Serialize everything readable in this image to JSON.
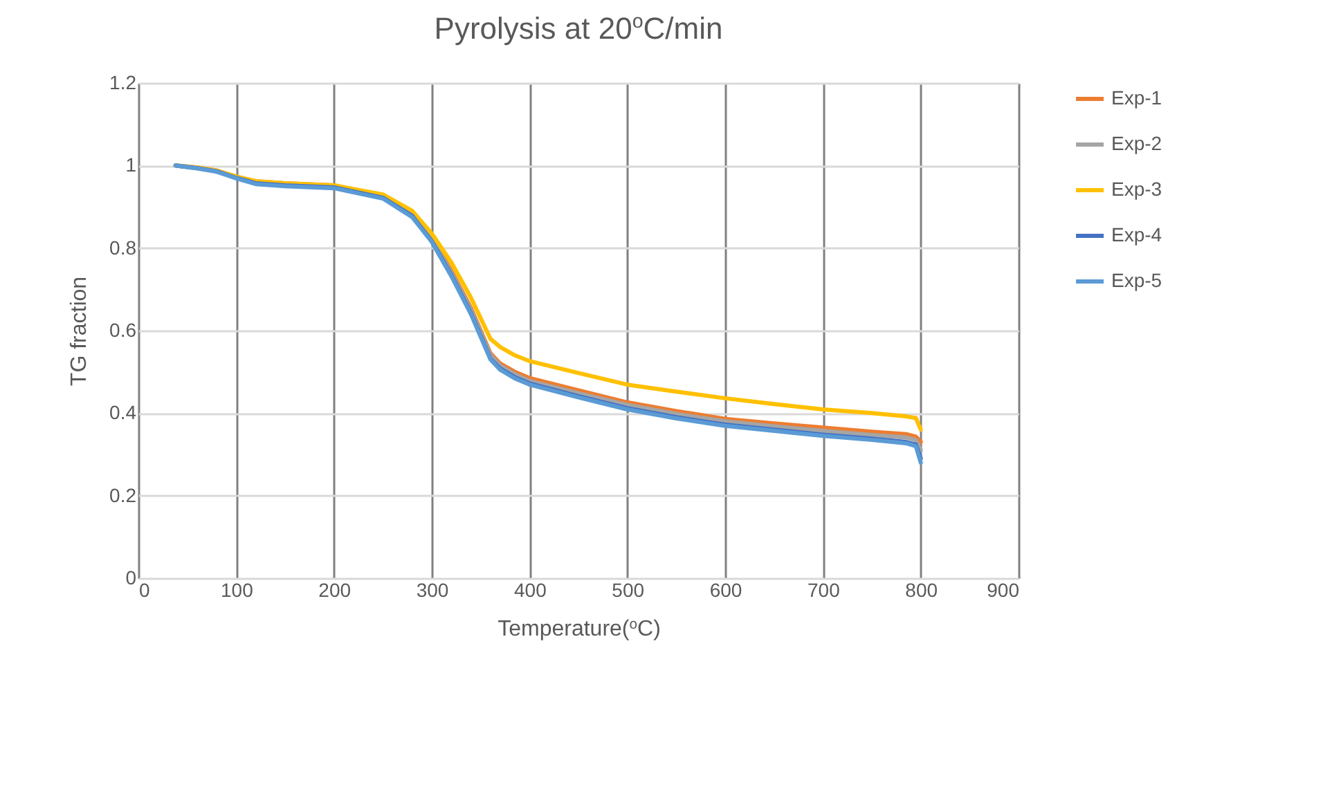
{
  "chart_data": {
    "type": "line",
    "title": "Pyrolysis at 20$^{o}$C/min",
    "xlabel": "Temperature($^{o}$C)",
    "ylabel": "TG fraction",
    "x": [
      38,
      60,
      80,
      100,
      120,
      150,
      200,
      250,
      280,
      300,
      320,
      340,
      350,
      360,
      370,
      385,
      400,
      450,
      500,
      550,
      600,
      650,
      700,
      750,
      785,
      795,
      800
    ],
    "xlim": [
      0,
      900
    ],
    "xticks": [
      0,
      100,
      200,
      300,
      400,
      500,
      600,
      700,
      800,
      900
    ],
    "ylim": [
      0,
      1.2
    ],
    "yticks": [
      0,
      0.2,
      0.4,
      0.6,
      0.8,
      1,
      1.2
    ],
    "grid": true,
    "legend": "right",
    "line_style": "solid",
    "marker": "none",
    "series": [
      {
        "name": "Exp-1",
        "color": "#ed7d31",
        "values": [
          1.0,
          0.995,
          0.988,
          0.973,
          0.962,
          0.957,
          0.952,
          0.927,
          0.885,
          0.825,
          0.745,
          0.655,
          0.6,
          0.545,
          0.52,
          0.5,
          0.485,
          0.455,
          0.426,
          0.405,
          0.386,
          0.375,
          0.365,
          0.355,
          0.349,
          0.343,
          0.33
        ]
      },
      {
        "name": "Exp-2",
        "color": "#a5a5a5",
        "values": [
          1.0,
          0.994,
          0.987,
          0.972,
          0.96,
          0.955,
          0.95,
          0.925,
          0.882,
          0.822,
          0.74,
          0.65,
          0.595,
          0.54,
          0.515,
          0.494,
          0.478,
          0.448,
          0.42,
          0.398,
          0.38,
          0.368,
          0.357,
          0.347,
          0.341,
          0.335,
          0.31
        ]
      },
      {
        "name": "Exp-3",
        "color": "#ffc000",
        "values": [
          1.0,
          0.995,
          0.988,
          0.973,
          0.962,
          0.957,
          0.952,
          0.93,
          0.89,
          0.835,
          0.765,
          0.68,
          0.63,
          0.58,
          0.56,
          0.54,
          0.526,
          0.497,
          0.469,
          0.452,
          0.436,
          0.422,
          0.409,
          0.4,
          0.392,
          0.388,
          0.36
        ]
      },
      {
        "name": "Exp-4",
        "color": "#4472c4",
        "values": [
          1.0,
          0.994,
          0.986,
          0.97,
          0.957,
          0.952,
          0.947,
          0.922,
          0.878,
          0.817,
          0.735,
          0.643,
          0.588,
          0.532,
          0.508,
          0.487,
          0.472,
          0.441,
          0.412,
          0.39,
          0.372,
          0.36,
          0.348,
          0.338,
          0.33,
          0.324,
          0.29
        ]
      },
      {
        "name": "Exp-5",
        "color": "#5b9bd5",
        "values": [
          1.0,
          0.993,
          0.985,
          0.969,
          0.955,
          0.95,
          0.945,
          0.92,
          0.875,
          0.815,
          0.732,
          0.64,
          0.585,
          0.53,
          0.505,
          0.484,
          0.469,
          0.438,
          0.409,
          0.387,
          0.369,
          0.357,
          0.345,
          0.335,
          0.327,
          0.32,
          0.28
        ]
      }
    ]
  }
}
